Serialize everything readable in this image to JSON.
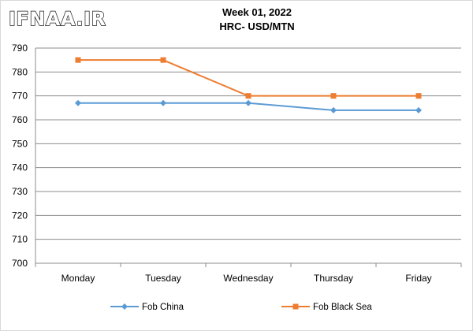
{
  "watermark": "IFNAA.IR",
  "chart_data": {
    "type": "line",
    "title": "Week 01, 2022",
    "subtitle": "HRC- USD/MTN",
    "categories": [
      "Monday",
      "Tuesday",
      "Wednesday",
      "Thursday",
      "Friday"
    ],
    "series": [
      {
        "name": "Fob China",
        "values": [
          767,
          767,
          767,
          764,
          764
        ],
        "color": "#5b9bd5",
        "marker": "diamond"
      },
      {
        "name": "Fob Black Sea",
        "values": [
          785,
          785,
          770,
          770,
          770
        ],
        "color": "#ed7d31",
        "marker": "square"
      }
    ],
    "ylim": [
      700,
      790
    ],
    "ytick_step": 10,
    "grid": true,
    "legend": "bottom"
  }
}
